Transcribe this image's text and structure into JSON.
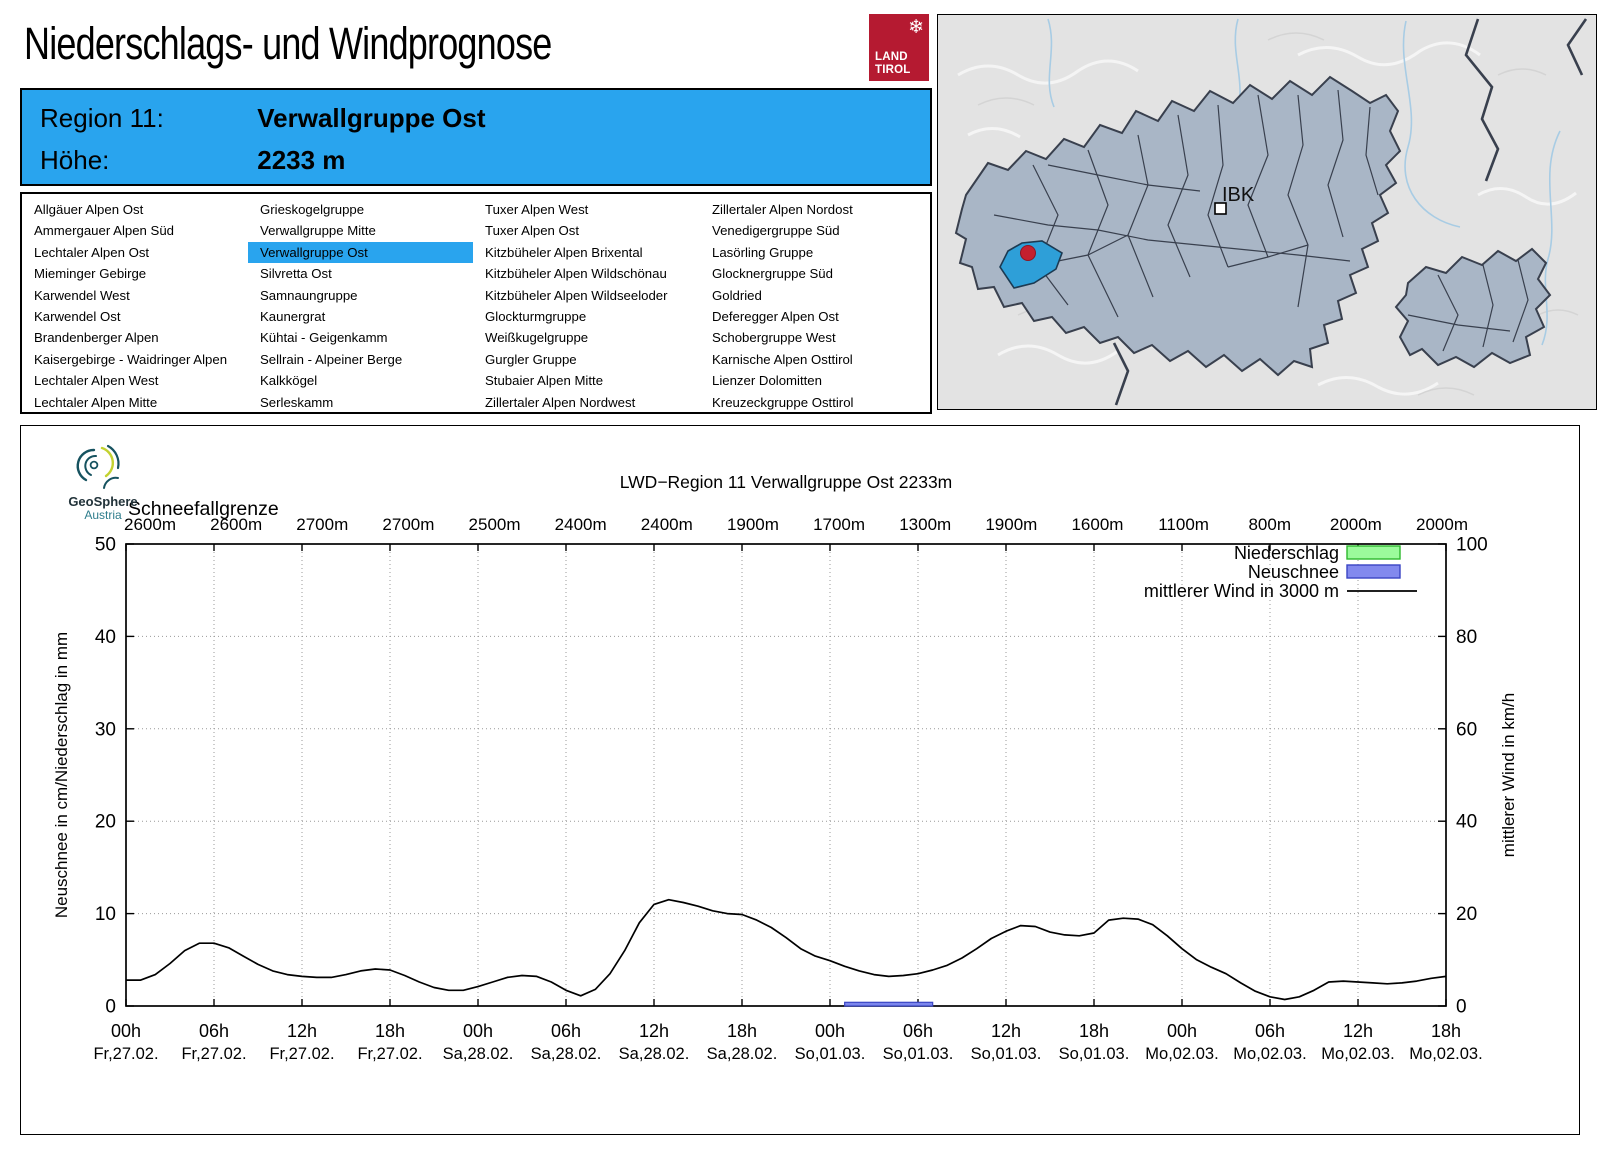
{
  "page": {
    "title": "Niederschlags- und Windprognose"
  },
  "logo": {
    "line1": "LAND",
    "line2": "TIROL",
    "snowflake": "❄",
    "bg_color": "#b51a31"
  },
  "geosphere": {
    "name": "GeoSphere",
    "country": "Austria"
  },
  "header": {
    "region_label": "Region 11:",
    "region_value": "Verwallgruppe Ost",
    "altitude_label": "Höhe:",
    "altitude_value": "2233 m",
    "bg_color": "#29a4ee"
  },
  "region_list": {
    "selected": "Verwallgruppe Ost",
    "columns": [
      [
        "Allgäuer Alpen Ost",
        "Ammergauer Alpen Süd",
        "Lechtaler Alpen Ost",
        "Mieminger Gebirge",
        "Karwendel West",
        "Karwendel Ost",
        "Brandenberger Alpen",
        "Kaisergebirge - Waidringer Alpen",
        "Lechtaler Alpen West",
        "Lechtaler Alpen Mitte"
      ],
      [
        "Grieskogelgruppe",
        "Verwallgruppe Mitte",
        "Verwallgruppe Ost",
        "Silvretta Ost",
        "Samnaungruppe",
        "Kaunergrat",
        "Kühtai - Geigenkamm",
        "Sellrain - Alpeiner Berge",
        "Kalkkögel",
        "Serleskamm"
      ],
      [
        "Tuxer Alpen West",
        "Tuxer Alpen Ost",
        "Kitzbüheler Alpen Brixental",
        "Kitzbüheler Alpen Wildschönau",
        "Kitzbüheler Alpen Wildseeloder",
        "Glockturmgruppe",
        "Weißkugelgruppe",
        "Gurgler Gruppe",
        "Stubaier Alpen Mitte",
        "Zillertaler Alpen Nordwest"
      ],
      [
        "Zillertaler Alpen Nordost",
        "Venedigergruppe Süd",
        "Lasörling Gruppe",
        "Glocknergruppe Süd",
        "Goldried",
        "Deferegger Alpen Ost",
        "Schobergruppe West",
        "Karnische Alpen Osttirol",
        "Lienzer Dolomitten",
        "Kreuzeckgruppe Osttirol"
      ]
    ]
  },
  "map": {
    "city_label": "IBK",
    "region_fill": "#a9b6c6",
    "highlight_fill": "#2e9fd8",
    "marker_color": "#c4202f",
    "border_color": "#39404e"
  },
  "chart_data": {
    "type": "line",
    "title": "LWD−Region 11 Verwallgruppe Ost 2233m",
    "snowline_header": "Schneefallgrenze",
    "snowline_labels": [
      "2600m",
      "2600m",
      "2700m",
      "2700m",
      "2500m",
      "2400m",
      "2400m",
      "1900m",
      "1700m",
      "1300m",
      "1900m",
      "1600m",
      "1100m",
      "800m",
      "2000m",
      "2000m"
    ],
    "x_tick_hours": [
      "00h",
      "06h",
      "12h",
      "18h",
      "00h",
      "06h",
      "12h",
      "18h",
      "00h",
      "06h",
      "12h",
      "18h",
      "00h",
      "06h",
      "12h",
      "18h"
    ],
    "x_tick_dates": [
      "Fr,27.02.",
      "Fr,27.02.",
      "Fr,27.02.",
      "Fr,27.02.",
      "Sa,28.02.",
      "Sa,28.02.",
      "Sa,28.02.",
      "Sa,28.02.",
      "So,01.03.",
      "So,01.03.",
      "So,01.03.",
      "So,01.03.",
      "Mo,02.03.",
      "Mo,02.03.",
      "Mo,02.03.",
      "Mo,02.03."
    ],
    "ylabel_left": "Neuschnee in cm/Niederschlag in mm",
    "ylabel_right": "mittlerer Wind in km/h",
    "ylim_left": [
      0,
      50
    ],
    "yticks_left": [
      0,
      10,
      20,
      30,
      40,
      50
    ],
    "ylim_right": [
      0,
      100
    ],
    "yticks_right": [
      0,
      20,
      40,
      60,
      80,
      100
    ],
    "x_span_hours": 90,
    "legend": [
      {
        "label": "Niederschlag",
        "fill": "#9bfb9b",
        "border": "#2eb82e"
      },
      {
        "label": "Neuschnee",
        "fill": "#8289ee",
        "border": "#3a45c4"
      },
      {
        "label": "mittlerer Wind in 3000 m",
        "line_color": "#000000"
      }
    ],
    "series": [
      {
        "name": "mittlerer Wind in 3000 m",
        "unit": "km/h",
        "axis": "right",
        "values_kmh": [
          5.6,
          5.6,
          6.8,
          9.2,
          12,
          13.6,
          13.6,
          12.6,
          10.8,
          9,
          7.6,
          6.8,
          6.4,
          6.2,
          6.2,
          6.8,
          7.6,
          8,
          7.8,
          6.6,
          5.2,
          4,
          3.4,
          3.4,
          4.2,
          5.2,
          6.2,
          6.6,
          6.4,
          5.2,
          3.4,
          2.2,
          3.6,
          7,
          12,
          18,
          22,
          23,
          22.4,
          21.6,
          20.6,
          20,
          19.8,
          18.6,
          17,
          14.8,
          12.4,
          10.8,
          9.8,
          8.6,
          7.6,
          6.8,
          6.4,
          6.6,
          7,
          7.8,
          8.8,
          10.4,
          12.4,
          14.6,
          16.2,
          17.4,
          17.2,
          16,
          15.4,
          15.2,
          15.8,
          18.6,
          19,
          18.8,
          17.6,
          15.2,
          12.4,
          10,
          8.4,
          7,
          5,
          3.2,
          2,
          1.4,
          2,
          3.4,
          5.2,
          5.4,
          5.2,
          5,
          4.8,
          5,
          5.4,
          6,
          6.4
        ]
      }
    ],
    "neuschnee_bar": {
      "start_hour": 49,
      "end_hour": 55,
      "value_cm": 0.4
    },
    "niederschlag_bars": []
  }
}
